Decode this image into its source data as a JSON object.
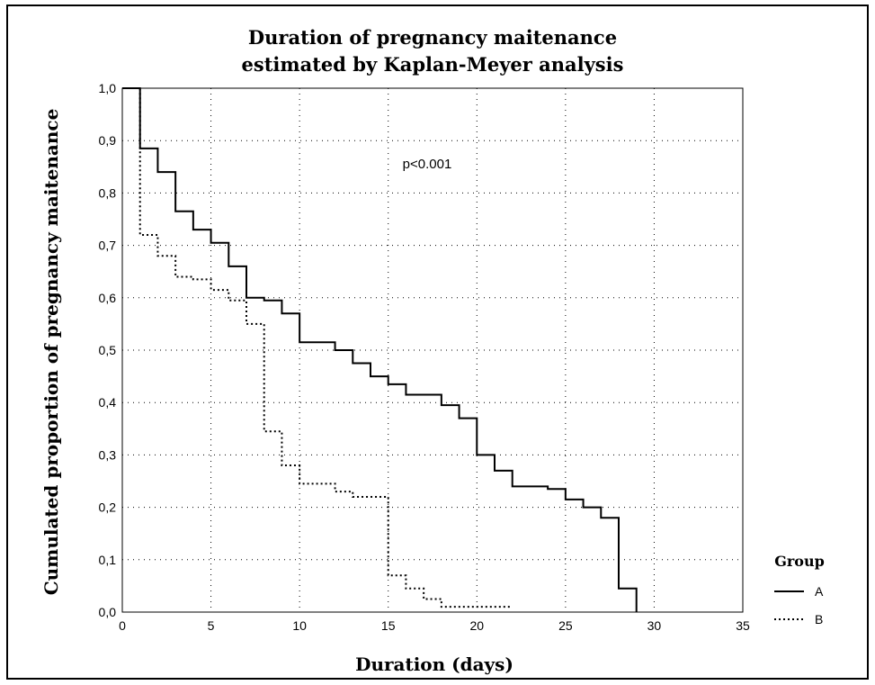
{
  "chart_data": {
    "type": "line",
    "title": "Duration of pregnancy maitenance",
    "subtitle": "estimated by Kaplan-Meyer analysis",
    "xlabel": "Duration (days)",
    "ylabel": "Cumulated proportion of pregnancy maitenance",
    "xlim": [
      0,
      35
    ],
    "ylim": [
      0,
      1
    ],
    "xticks": [
      "0",
      "5",
      "10",
      "15",
      "20",
      "25",
      "30",
      "35"
    ],
    "yticks": [
      "0,0",
      "0,1",
      "0,2",
      "0,3",
      "0,4",
      "0,5",
      "0,6",
      "0,7",
      "0,8",
      "0,9",
      "1,0"
    ],
    "grid": true,
    "annotation": "p<0.001",
    "legend": {
      "title": "Group",
      "position": "bottom-right"
    },
    "series": [
      {
        "name": "A",
        "style": "solid",
        "x": [
          0,
          1,
          2,
          3,
          4,
          5,
          6,
          7,
          8,
          9,
          10,
          12,
          13,
          14,
          15,
          16,
          18,
          19,
          20,
          21,
          22,
          24,
          25,
          26,
          27,
          28,
          29
        ],
        "y": [
          1.0,
          0.885,
          0.84,
          0.765,
          0.73,
          0.705,
          0.66,
          0.6,
          0.595,
          0.57,
          0.515,
          0.5,
          0.475,
          0.45,
          0.435,
          0.415,
          0.395,
          0.37,
          0.3,
          0.27,
          0.24,
          0.235,
          0.215,
          0.2,
          0.18,
          0.045,
          0.0
        ]
      },
      {
        "name": "B",
        "style": "dotted",
        "x": [
          0,
          1,
          2,
          3,
          4,
          5,
          6,
          7,
          8,
          9,
          10,
          12,
          13,
          15,
          16,
          17,
          18,
          22
        ],
        "y": [
          1.0,
          0.72,
          0.68,
          0.64,
          0.635,
          0.615,
          0.595,
          0.55,
          0.345,
          0.28,
          0.245,
          0.23,
          0.22,
          0.07,
          0.045,
          0.025,
          0.01,
          0.01
        ]
      }
    ]
  }
}
